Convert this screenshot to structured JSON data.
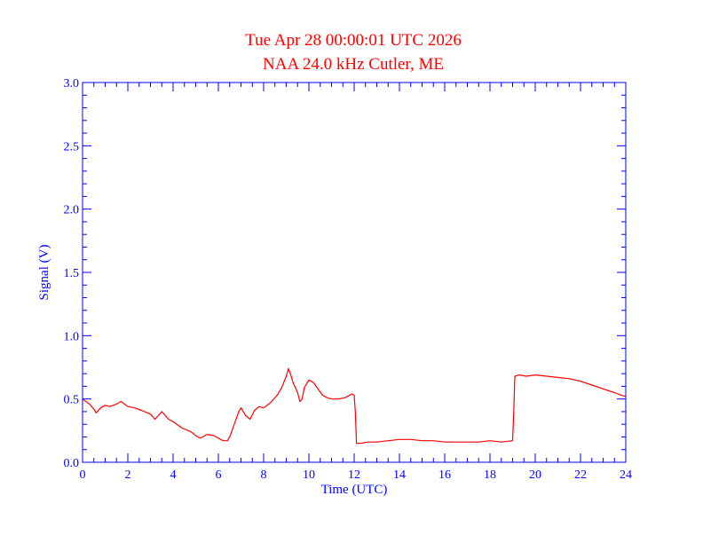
{
  "colors": {
    "background": "#ffffff",
    "title": "#ff0000",
    "axes": "#0000ff",
    "series": "#ff0000"
  },
  "chart_data": {
    "type": "line",
    "title": "Tue Apr 28 00:00:01 UTC 2026",
    "subtitle": "NAA 24.0 kHz Cutler, ME",
    "xlabel": "Time (UTC)",
    "ylabel": "Signal (V)",
    "xlim": [
      0,
      24
    ],
    "ylim": [
      0,
      3.0
    ],
    "x_ticks": [
      0,
      2,
      4,
      6,
      8,
      10,
      12,
      14,
      16,
      18,
      20,
      22,
      24
    ],
    "x_tick_labels": [
      "0",
      "2",
      "4",
      "6",
      "8",
      "10",
      "12",
      "14",
      "16",
      "18",
      "20",
      "22",
      "24"
    ],
    "y_ticks": [
      0,
      0.5,
      1.0,
      1.5,
      2.0,
      2.5,
      3.0
    ],
    "y_tick_labels": [
      "0.0",
      "0.5",
      "1.0",
      "1.5",
      "2.0",
      "2.5",
      "3.0"
    ],
    "grid": false,
    "series": [
      {
        "x": [
          0,
          0.3,
          0.5,
          0.6,
          0.8,
          1.0,
          1.2,
          1.5,
          1.7,
          2.0,
          2.3,
          2.6,
          3.0,
          3.2,
          3.5,
          3.8,
          4.0,
          4.4,
          4.8,
          5.0,
          5.2,
          5.5,
          5.8,
          6.0,
          6.2,
          6.4,
          6.5,
          6.7,
          6.9,
          7.0,
          7.2,
          7.4,
          7.6,
          7.8,
          8.0,
          8.3,
          8.6,
          8.8,
          9.0,
          9.1,
          9.2,
          9.3,
          9.5,
          9.6,
          9.7,
          9.8,
          10.0,
          10.2,
          10.4,
          10.6,
          10.8,
          11.0,
          11.3,
          11.6,
          11.9,
          12.0,
          12.05,
          12.1,
          12.3,
          12.6,
          13.0,
          13.5,
          14.0,
          14.5,
          15.0,
          15.5,
          16.0,
          16.5,
          17.0,
          17.5,
          18.0,
          18.5,
          19.0,
          19.05,
          19.1,
          19.3,
          19.6,
          20.0,
          20.5,
          21.0,
          21.5,
          22.0,
          22.5,
          23.0,
          23.5,
          23.8,
          24.0
        ],
        "values": [
          0.5,
          0.46,
          0.42,
          0.39,
          0.43,
          0.45,
          0.44,
          0.46,
          0.48,
          0.44,
          0.43,
          0.41,
          0.38,
          0.34,
          0.4,
          0.34,
          0.32,
          0.27,
          0.24,
          0.21,
          0.19,
          0.22,
          0.21,
          0.19,
          0.17,
          0.17,
          0.2,
          0.3,
          0.4,
          0.43,
          0.37,
          0.34,
          0.41,
          0.44,
          0.43,
          0.47,
          0.53,
          0.59,
          0.68,
          0.74,
          0.69,
          0.63,
          0.55,
          0.48,
          0.5,
          0.59,
          0.65,
          0.63,
          0.58,
          0.53,
          0.51,
          0.5,
          0.5,
          0.51,
          0.54,
          0.53,
          0.4,
          0.15,
          0.15,
          0.16,
          0.16,
          0.17,
          0.18,
          0.18,
          0.17,
          0.17,
          0.16,
          0.16,
          0.16,
          0.16,
          0.17,
          0.16,
          0.17,
          0.4,
          0.68,
          0.69,
          0.68,
          0.69,
          0.68,
          0.67,
          0.66,
          0.64,
          0.61,
          0.58,
          0.55,
          0.53,
          0.52
        ]
      }
    ]
  }
}
